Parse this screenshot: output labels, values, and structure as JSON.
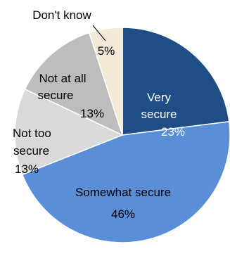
{
  "chart_data": {
    "type": "pie",
    "title": "",
    "slices": [
      {
        "label": "Very secure",
        "label_lines": [
          "Very",
          "secure"
        ],
        "value": 23,
        "display": "23%",
        "color": "#1f4e87"
      },
      {
        "label": "Somewhat secure",
        "label_lines": [
          "Somewhat secure"
        ],
        "value": 46,
        "display": "46%",
        "color": "#5a8ed6"
      },
      {
        "label": "Not too secure",
        "label_lines": [
          "Not too",
          "secure"
        ],
        "value": 13,
        "display": "13%",
        "color": "#d9d9d9"
      },
      {
        "label": "Not at all secure",
        "label_lines": [
          "Not at all",
          "secure"
        ],
        "value": 13,
        "display": "13%",
        "color": "#bdbdbd"
      },
      {
        "label": "Don't know",
        "label_lines": [
          "Don't know"
        ],
        "value": 5,
        "display": "5%",
        "color": "#f3ead7"
      }
    ],
    "start_angle_deg": 0,
    "direction": "clockwise",
    "legend": "none"
  }
}
